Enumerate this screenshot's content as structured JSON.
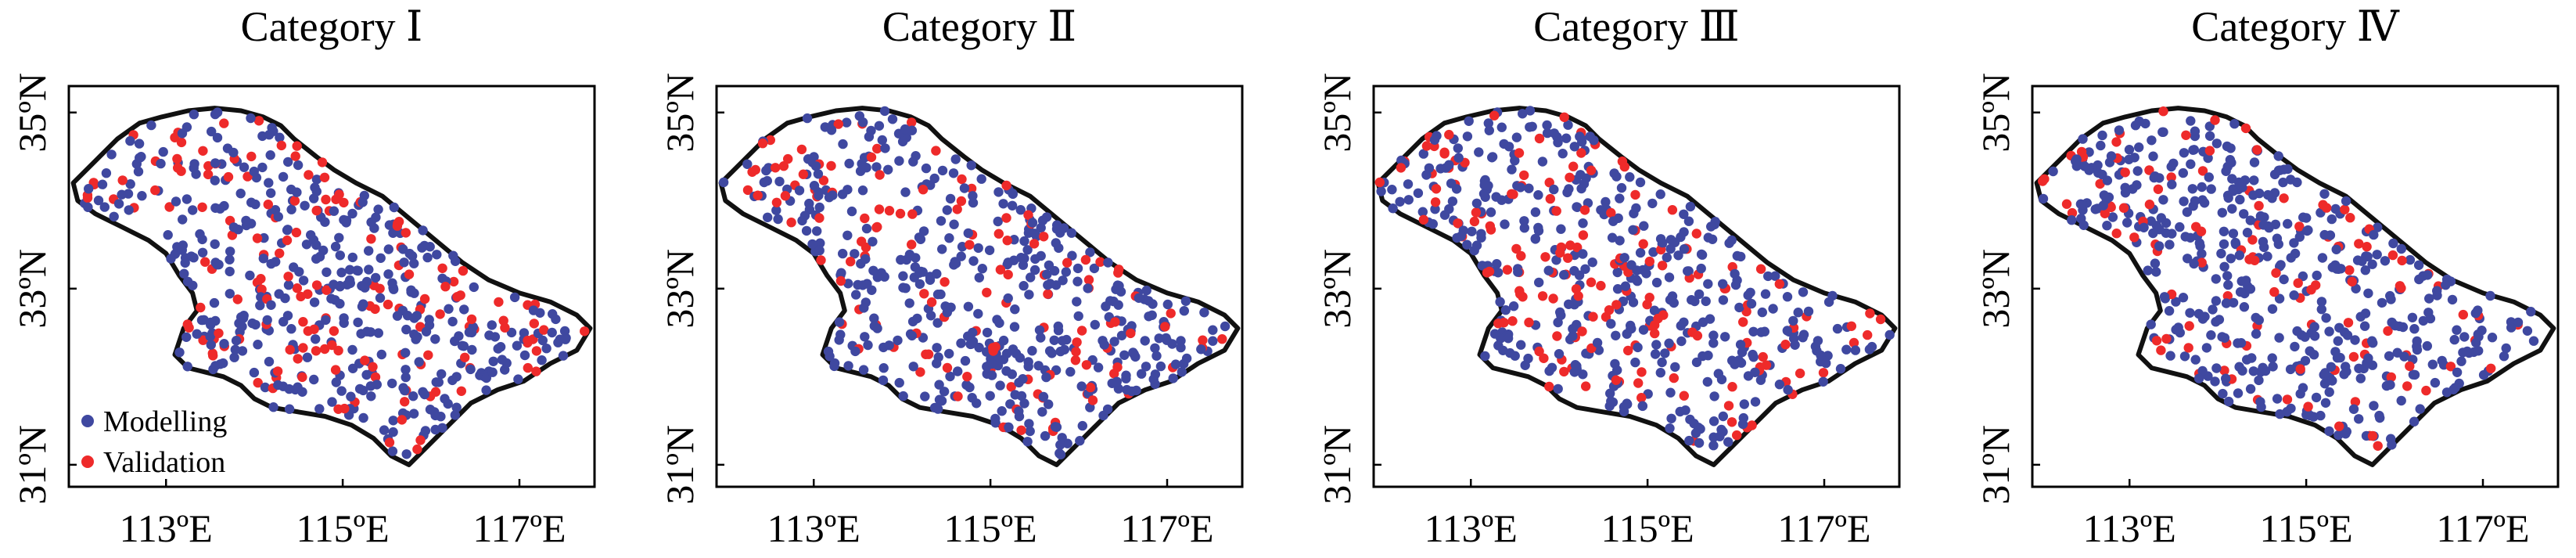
{
  "figure": {
    "colors": {
      "modelling": "#3f48a0",
      "validation": "#ee2a2a",
      "boundary": "#111111",
      "frame": "#000000"
    },
    "legend": {
      "modelling_label": "Modelling",
      "validation_label": "Validation"
    },
    "x_ticks": [
      {
        "value": 113,
        "label": "113ºE"
      },
      {
        "value": 115,
        "label": "115ºE"
      },
      {
        "value": 117,
        "label": "117ºE"
      }
    ],
    "y_ticks": [
      {
        "value": 35,
        "label": "35ºN"
      },
      {
        "value": 33,
        "label": "33ºN"
      },
      {
        "value": 31,
        "label": "31ºN"
      }
    ],
    "lon_range": [
      111.9,
      117.85
    ],
    "lat_range": [
      30.75,
      35.3
    ],
    "legend_position": "bottom-left (first panel only)",
    "panels": [
      {
        "title": "Category Ⅰ",
        "seed": 11,
        "validation_fraction": 0.3,
        "show_legend": true
      },
      {
        "title": "Category Ⅱ",
        "seed": 29,
        "validation_fraction": 0.22,
        "show_legend": false
      },
      {
        "title": "Category Ⅲ",
        "seed": 47,
        "validation_fraction": 0.25,
        "show_legend": false
      },
      {
        "title": "Category Ⅳ",
        "seed": 83,
        "validation_fraction": 0.2,
        "show_legend": false
      }
    ],
    "boundary_lonlat": [
      [
        111.95,
        34.2
      ],
      [
        112.2,
        34.45
      ],
      [
        112.45,
        34.7
      ],
      [
        112.7,
        34.88
      ],
      [
        112.95,
        34.95
      ],
      [
        113.25,
        35.02
      ],
      [
        113.55,
        35.05
      ],
      [
        113.85,
        35.02
      ],
      [
        114.1,
        34.95
      ],
      [
        114.3,
        34.85
      ],
      [
        114.45,
        34.7
      ],
      [
        114.7,
        34.5
      ],
      [
        114.9,
        34.35
      ],
      [
        115.15,
        34.2
      ],
      [
        115.45,
        34.05
      ],
      [
        115.75,
        33.8
      ],
      [
        116.05,
        33.55
      ],
      [
        116.35,
        33.3
      ],
      [
        116.65,
        33.1
      ],
      [
        117.0,
        32.95
      ],
      [
        117.35,
        32.85
      ],
      [
        117.65,
        32.7
      ],
      [
        117.8,
        32.55
      ],
      [
        117.65,
        32.3
      ],
      [
        117.35,
        32.15
      ],
      [
        117.05,
        31.95
      ],
      [
        116.75,
        31.85
      ],
      [
        116.45,
        31.7
      ],
      [
        116.2,
        31.45
      ],
      [
        115.95,
        31.2
      ],
      [
        115.75,
        31.0
      ],
      [
        115.55,
        31.1
      ],
      [
        115.35,
        31.3
      ],
      [
        115.1,
        31.45
      ],
      [
        114.8,
        31.55
      ],
      [
        114.5,
        31.6
      ],
      [
        114.2,
        31.65
      ],
      [
        114.0,
        31.75
      ],
      [
        113.85,
        31.9
      ],
      [
        113.65,
        32.0
      ],
      [
        113.45,
        32.05
      ],
      [
        113.25,
        32.1
      ],
      [
        113.1,
        32.25
      ],
      [
        113.2,
        32.55
      ],
      [
        113.35,
        32.75
      ],
      [
        113.3,
        32.95
      ],
      [
        113.15,
        33.15
      ],
      [
        113.0,
        33.4
      ],
      [
        112.8,
        33.55
      ],
      [
        112.5,
        33.7
      ],
      [
        112.2,
        33.85
      ],
      [
        112.0,
        34.0
      ]
    ]
  }
}
